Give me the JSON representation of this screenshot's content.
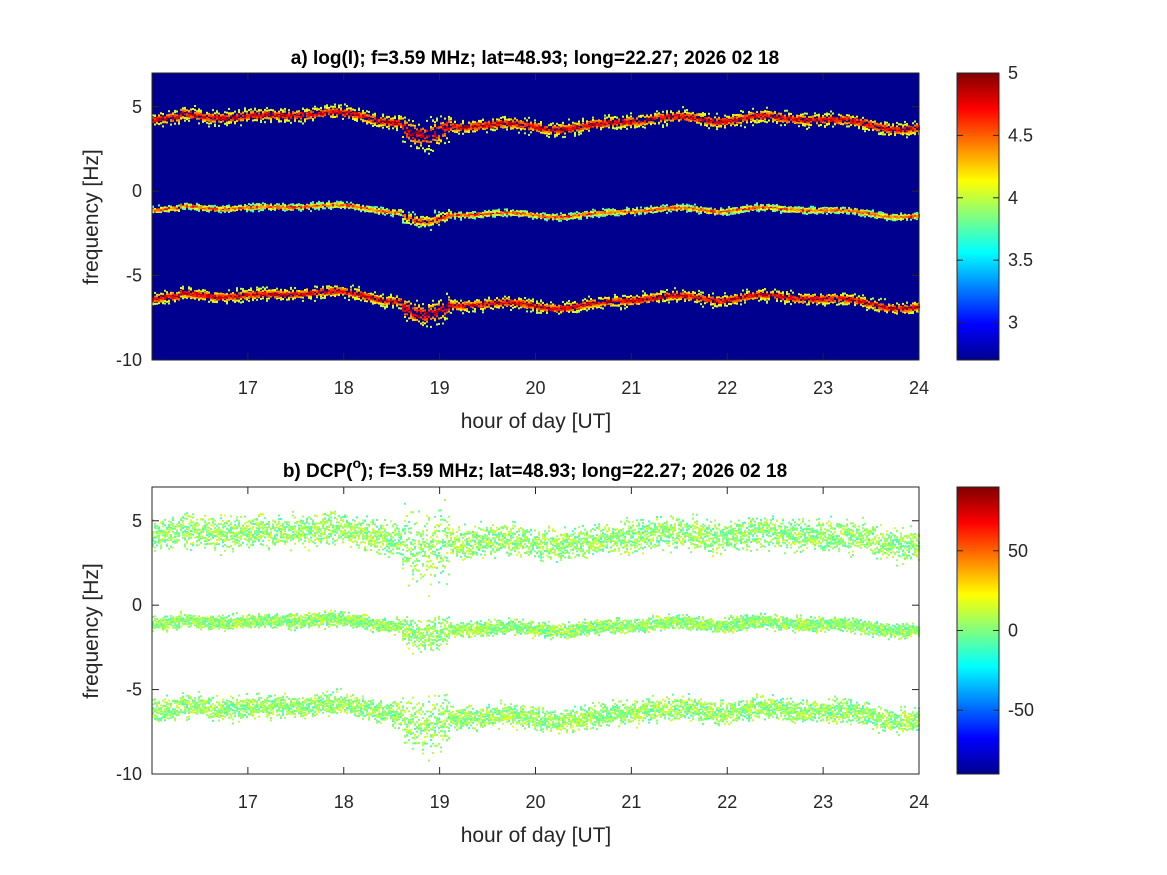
{
  "chart_data": [
    {
      "type": "heatmap",
      "title_main": "a) log(I); f=3.59 MHz;  lat=48.93; long=22.27; 2026 02 18",
      "xlabel": "hour of day [UT]",
      "ylabel": "frequency [Hz]",
      "xlim": [
        16,
        24
      ],
      "ylim": [
        -10,
        7
      ],
      "xticks": [
        "17",
        "18",
        "19",
        "20",
        "21",
        "22",
        "23",
        "24"
      ],
      "yticks": [
        "5",
        "0",
        "-5",
        "-10"
      ],
      "background": "#00008f",
      "colormap": "jet",
      "colorbar": {
        "clim": [
          2.7,
          5
        ],
        "ticks": [
          "5",
          "4.5",
          "4",
          "3.5",
          "3"
        ]
      },
      "traces": [
        {
          "name": "upper",
          "base": 4.1,
          "width": 0.25
        },
        {
          "name": "middle",
          "base": -1.2,
          "width": 0.12
        },
        {
          "name": "lower",
          "base": -6.5,
          "width": 0.22
        }
      ]
    },
    {
      "type": "heatmap",
      "title_prefix": "b) DCP(",
      "title_sup": "o",
      "title_suffix": "); f=3.59 MHz;  lat=48.93; long=22.27; 2026 02 18",
      "xlabel": "hour of day [UT]",
      "ylabel": "frequency [Hz]",
      "xlim": [
        16,
        24
      ],
      "ylim": [
        -10,
        7
      ],
      "xticks": [
        "17",
        "18",
        "19",
        "20",
        "21",
        "22",
        "23",
        "24"
      ],
      "yticks": [
        "5",
        "0",
        "-5",
        "-10"
      ],
      "background": "#ffffff",
      "colormap": "jet",
      "colorbar": {
        "clim": [
          -90,
          90
        ],
        "ticks": [
          "50",
          "0",
          "-50"
        ]
      },
      "traces": [
        {
          "name": "upper",
          "base": 4.0,
          "width": 0.55
        },
        {
          "name": "middle",
          "base": -1.2,
          "width": 0.25
        },
        {
          "name": "lower",
          "base": -6.4,
          "width": 0.4
        }
      ]
    }
  ]
}
